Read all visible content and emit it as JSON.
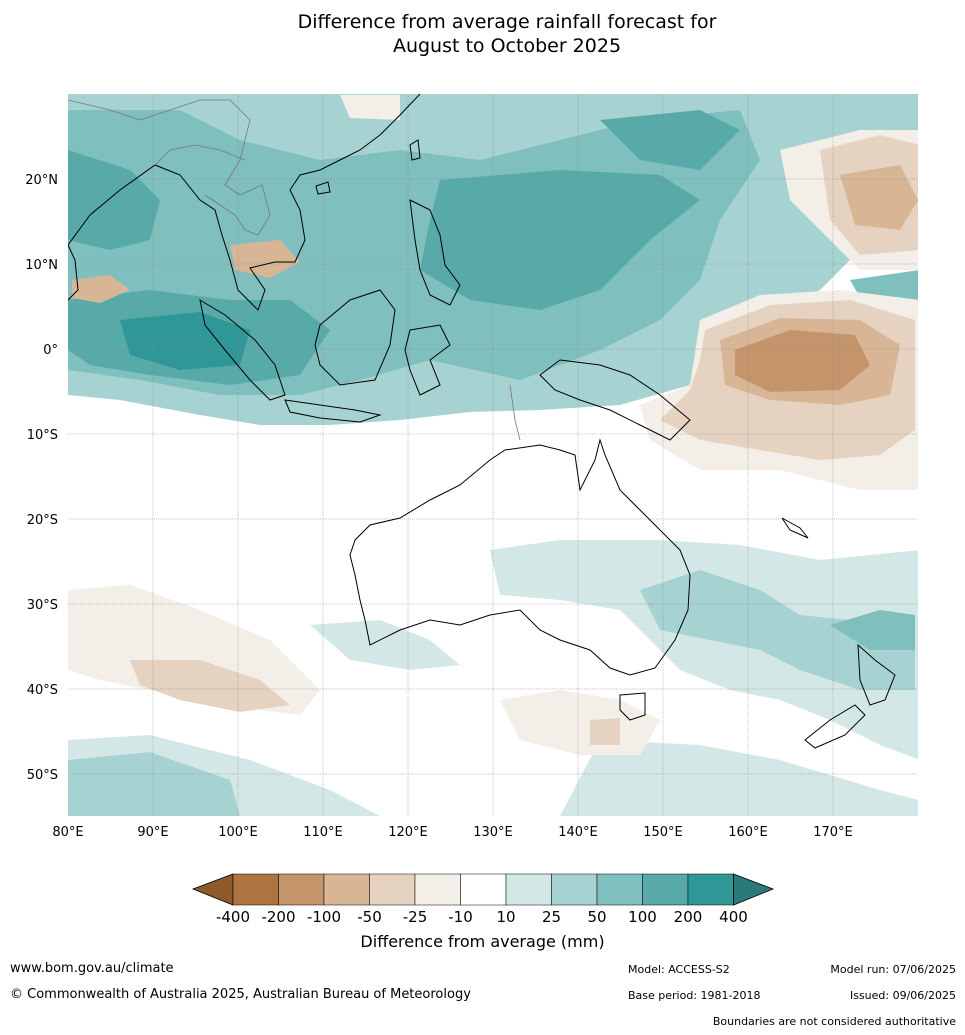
{
  "title_line1": "Difference from average rainfall forecast for",
  "title_line2": "August to October 2025",
  "lat_labels": [
    "20°N",
    "10°N",
    "0°",
    "10°S",
    "20°S",
    "30°S",
    "40°S",
    "50°S"
  ],
  "lon_labels": [
    "80°E",
    "90°E",
    "100°E",
    "110°E",
    "120°E",
    "130°E",
    "140°E",
    "150°E",
    "160°E",
    "170°E"
  ],
  "colorbar": {
    "title": "Difference from average (mm)",
    "tick_labels": [
      "-400",
      "-200",
      "-100",
      "-50",
      "-25",
      "-10",
      "10",
      "25",
      "50",
      "100",
      "200",
      "400"
    ],
    "colors": [
      "#8e5a2c",
      "#ad7440",
      "#c4956a",
      "#d8b595",
      "#e6d2c0",
      "#f3eee8",
      "#ffffff",
      "#d3e8e6",
      "#a6d3d1",
      "#7fbfbd",
      "#58aaa9",
      "#2f9896",
      "#2a7a79"
    ]
  },
  "map_colors": {
    "wet_light": "#d3e8e6",
    "wet_mid": "#a6d3d1",
    "wet_strong": "#7fbfbd",
    "wet_stronger": "#58aaa9",
    "wet_max": "#2f9896",
    "dry_light": "#f3eee8",
    "dry_mid": "#e6d2c0",
    "dry_strong": "#d8b595",
    "dry_stronger": "#c4956a"
  },
  "footer": {
    "website": "www.bom.gov.au/climate",
    "copyright": "© Commonwealth of Australia 2025, Australian Bureau of Meteorology",
    "model": "Model: ACCESS-S2",
    "base_period": "Base period: 1981-2018",
    "model_run": "Model run: 07/06/2025",
    "issued": "Issued: 09/06/2025",
    "disclaimer": "Boundaries are not considered authoritative"
  }
}
